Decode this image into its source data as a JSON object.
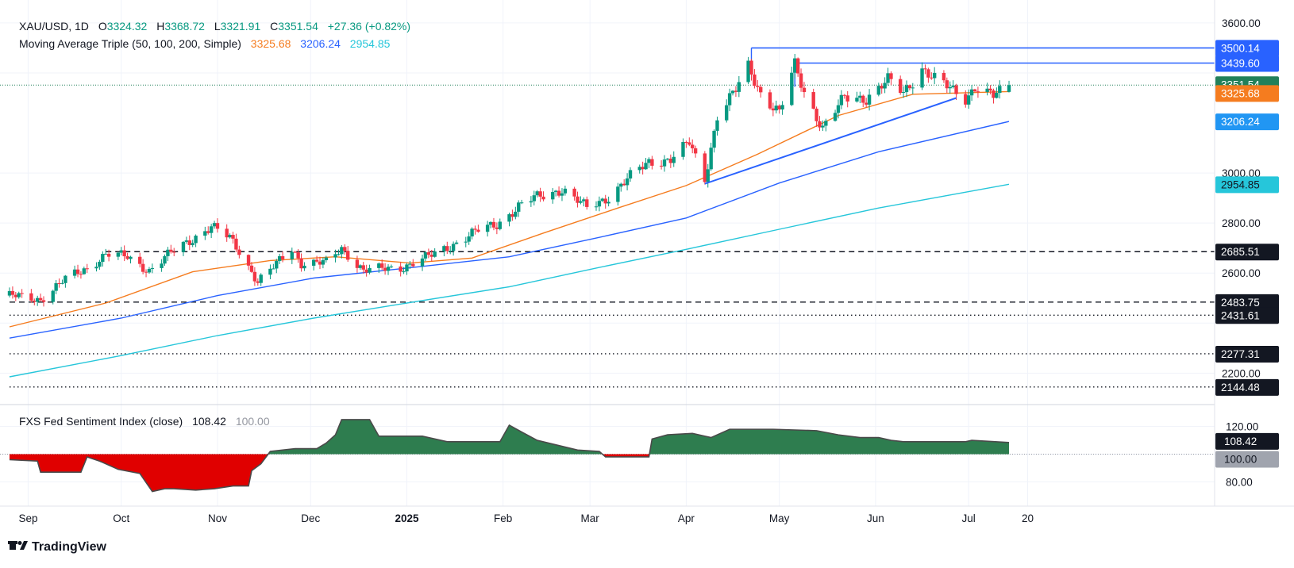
{
  "legend": {
    "symbol": "XAU/USD, 1D",
    "o_label": "O",
    "open": "3324.32",
    "h_label": "H",
    "high": "3368.72",
    "l_label": "L",
    "low": "3321.91",
    "c_label": "C",
    "close": "3351.54",
    "change": "+27.36 (+0.82%)",
    "ma_label": "Moving Average Triple (50, 100, 200, Simple)",
    "ma50": "3325.68",
    "ma100": "3206.24",
    "ma200": "2954.85",
    "sentiment_label": "FXS Fed Sentiment Index (close)",
    "sentiment_value": "108.42",
    "sentiment_base": "100.00"
  },
  "brand": "TradingView",
  "colors": {
    "up": "#089981",
    "down": "#f23645",
    "ma50": "#f57c1f",
    "ma100": "#2962ff",
    "ma200": "#26c6da",
    "trend": "#2962ff",
    "sent_up": "#2e7d4f",
    "sent_down": "#e00000",
    "price_tag": "#22805a",
    "ma50_tag": "#f57c1f",
    "ma100_tag": "#2196f3",
    "ma200_tag": "#26c6da"
  },
  "x_axis": [
    "Sep",
    "Oct",
    "Nov",
    "Dec",
    "2025",
    "Feb",
    "Mar",
    "Apr",
    "May",
    "Jun",
    "Jul",
    "20"
  ],
  "chart_data": {
    "type": "candlestick",
    "symbol": "XAU/USD",
    "timeframe": "1D",
    "date_range": [
      "2024-08-26",
      "2025-07-14"
    ],
    "y_axis_ticks": [
      3600,
      3000,
      2800,
      2600,
      2200
    ],
    "ylim": [
      2090,
      3660
    ],
    "last": {
      "open": 3324.32,
      "high": 3368.72,
      "low": 3321.91,
      "close": 3351.54,
      "change": 27.36,
      "change_pct": 0.82
    },
    "price_labels": [
      {
        "value": "3500.14",
        "kind": "resistance"
      },
      {
        "value": "3439.60",
        "kind": "resistance"
      },
      {
        "value": "3351.54",
        "kind": "price"
      },
      {
        "value": "3325.68",
        "kind": "ma50"
      },
      {
        "value": "3206.24",
        "kind": "ma100"
      },
      {
        "value": "2954.85",
        "kind": "ma200"
      },
      {
        "value": "2685.51",
        "kind": "dashed"
      },
      {
        "value": "2483.75",
        "kind": "dashed"
      },
      {
        "value": "2431.61",
        "kind": "dotted"
      },
      {
        "value": "2277.31",
        "kind": "dotted"
      },
      {
        "value": "2144.48",
        "kind": "dotted"
      }
    ],
    "horizontal_levels": [
      {
        "value": 3500.14,
        "style": "solid",
        "from": "2025-04-22",
        "to": "2025-07-31"
      },
      {
        "value": 3439.6,
        "style": "solid",
        "from": "2025-05-06",
        "to": "2025-07-31"
      },
      {
        "value": 2685.51,
        "style": "dashed",
        "from": "2024-09-26",
        "to": "2025-07-31"
      },
      {
        "value": 2483.75,
        "style": "dashed",
        "from": "2024-08-26",
        "to": "2025-07-31"
      },
      {
        "value": 2431.61,
        "style": "dotted",
        "from": "2024-08-26",
        "to": "2025-07-31"
      },
      {
        "value": 2277.31,
        "style": "dotted",
        "from": "2024-08-26",
        "to": "2025-07-31"
      },
      {
        "value": 2144.48,
        "style": "dotted",
        "from": "2024-08-26",
        "to": "2025-07-31"
      }
    ],
    "trendlines": [
      {
        "from": [
          "2025-04-07",
          2957
        ],
        "to": [
          "2025-06-27",
          3300
        ]
      }
    ],
    "price_path": [
      [
        "2024-08-26",
        2510
      ],
      [
        "2024-09-05",
        2495
      ],
      [
        "2024-09-13",
        2575
      ],
      [
        "2024-09-20",
        2620
      ],
      [
        "2024-09-26",
        2675
      ],
      [
        "2024-10-03",
        2665
      ],
      [
        "2024-10-10",
        2610
      ],
      [
        "2024-10-18",
        2690
      ],
      [
        "2024-10-23",
        2730
      ],
      [
        "2024-10-30",
        2785
      ],
      [
        "2024-11-05",
        2740
      ],
      [
        "2024-11-08",
        2690
      ],
      [
        "2024-11-14",
        2565
      ],
      [
        "2024-11-18",
        2610
      ],
      [
        "2024-11-25",
        2700
      ],
      [
        "2024-11-28",
        2640
      ],
      [
        "2024-12-06",
        2640
      ],
      [
        "2024-12-11",
        2700
      ],
      [
        "2024-12-18",
        2610
      ],
      [
        "2024-12-23",
        2615
      ],
      [
        "2024-12-31",
        2625
      ],
      [
        "2025-01-08",
        2665
      ],
      [
        "2025-01-16",
        2715
      ],
      [
        "2025-01-24",
        2770
      ],
      [
        "2025-01-30",
        2795
      ],
      [
        "2025-02-06",
        2865
      ],
      [
        "2025-02-11",
        2900
      ],
      [
        "2025-02-20",
        2935
      ],
      [
        "2025-02-28",
        2860
      ],
      [
        "2025-03-07",
        2905
      ],
      [
        "2025-03-14",
        2985
      ],
      [
        "2025-03-20",
        3045
      ],
      [
        "2025-03-27",
        3055
      ],
      [
        "2025-04-02",
        3120
      ],
      [
        "2025-04-07",
        2975
      ],
      [
        "2025-04-11",
        3230
      ],
      [
        "2025-04-17",
        3330
      ],
      [
        "2025-04-21",
        3425
      ],
      [
        "2025-04-25",
        3320
      ],
      [
        "2025-05-01",
        3240
      ],
      [
        "2025-05-06",
        3430
      ],
      [
        "2025-05-09",
        3325
      ],
      [
        "2025-05-15",
        3180
      ],
      [
        "2025-05-22",
        3300
      ],
      [
        "2025-05-29",
        3300
      ],
      [
        "2025-06-05",
        3370
      ],
      [
        "2025-06-10",
        3320
      ],
      [
        "2025-06-16",
        3420
      ],
      [
        "2025-06-20",
        3375
      ],
      [
        "2025-06-26",
        3330
      ],
      [
        "2025-06-30",
        3300
      ],
      [
        "2025-07-03",
        3345
      ],
      [
        "2025-07-09",
        3305
      ],
      [
        "2025-07-14",
        3351.54
      ]
    ],
    "series": [
      {
        "name": "MA50",
        "values": [
          [
            "2024-08-26",
            2385
          ],
          [
            "2024-09-26",
            2480
          ],
          [
            "2024-10-24",
            2605
          ],
          [
            "2024-11-18",
            2650
          ],
          [
            "2024-12-09",
            2665
          ],
          [
            "2025-01-02",
            2640
          ],
          [
            "2025-01-22",
            2660
          ],
          [
            "2025-02-14",
            2760
          ],
          [
            "2025-03-10",
            2860
          ],
          [
            "2025-04-01",
            2950
          ],
          [
            "2025-04-24",
            3075
          ],
          [
            "2025-05-20",
            3230
          ],
          [
            "2025-06-13",
            3315
          ],
          [
            "2025-07-14",
            3325.68
          ]
        ]
      },
      {
        "name": "MA100",
        "values": [
          [
            "2024-08-26",
            2340
          ],
          [
            "2024-10-01",
            2420
          ],
          [
            "2024-11-01",
            2510
          ],
          [
            "2024-12-02",
            2580
          ],
          [
            "2025-01-01",
            2620
          ],
          [
            "2025-02-03",
            2665
          ],
          [
            "2025-03-03",
            2740
          ],
          [
            "2025-04-01",
            2820
          ],
          [
            "2025-05-01",
            2960
          ],
          [
            "2025-06-02",
            3085
          ],
          [
            "2025-07-14",
            3206.24
          ]
        ]
      },
      {
        "name": "MA200",
        "values": [
          [
            "2024-08-26",
            2185
          ],
          [
            "2024-10-01",
            2270
          ],
          [
            "2024-11-01",
            2350
          ],
          [
            "2024-12-02",
            2420
          ],
          [
            "2025-01-01",
            2480
          ],
          [
            "2025-02-03",
            2545
          ],
          [
            "2025-03-03",
            2620
          ],
          [
            "2025-04-01",
            2695
          ],
          [
            "2025-05-01",
            2775
          ],
          [
            "2025-06-02",
            2860
          ],
          [
            "2025-07-14",
            2954.85
          ]
        ]
      }
    ],
    "sentiment": {
      "name": "FXS Fed Sentiment Index (close)",
      "baseline": 100,
      "ticks": [
        120,
        100,
        80
      ],
      "ylim": [
        67,
        133
      ],
      "last": 108.42,
      "values": [
        [
          "2024-08-26",
          96
        ],
        [
          "2024-09-04",
          95
        ],
        [
          "2024-09-05",
          87
        ],
        [
          "2024-09-18",
          87
        ],
        [
          "2024-09-20",
          98
        ],
        [
          "2024-09-24",
          95
        ],
        [
          "2024-09-30",
          89
        ],
        [
          "2024-10-07",
          86
        ],
        [
          "2024-10-11",
          73
        ],
        [
          "2024-10-15",
          75
        ],
        [
          "2024-10-18",
          75
        ],
        [
          "2024-10-25",
          74
        ],
        [
          "2024-10-31",
          75
        ],
        [
          "2024-11-06",
          77
        ],
        [
          "2024-11-11",
          77
        ],
        [
          "2024-11-12",
          88
        ],
        [
          "2024-11-15",
          93
        ],
        [
          "2024-11-18",
          102
        ],
        [
          "2024-11-26",
          104
        ],
        [
          "2024-12-03",
          104
        ],
        [
          "2024-12-06",
          108
        ],
        [
          "2024-12-09",
          114
        ],
        [
          "2024-12-11",
          125
        ],
        [
          "2024-12-20",
          125
        ],
        [
          "2024-12-23",
          113
        ],
        [
          "2025-01-06",
          113
        ],
        [
          "2025-01-14",
          109
        ],
        [
          "2025-01-31",
          109
        ],
        [
          "2025-02-03",
          121
        ],
        [
          "2025-02-07",
          116
        ],
        [
          "2025-02-12",
          110
        ],
        [
          "2025-02-25",
          103
        ],
        [
          "2025-03-04",
          102
        ],
        [
          "2025-03-06",
          98
        ],
        [
          "2025-03-20",
          98
        ],
        [
          "2025-03-21",
          111
        ],
        [
          "2025-03-26",
          114
        ],
        [
          "2025-04-03",
          115
        ],
        [
          "2025-04-09",
          112
        ],
        [
          "2025-04-15",
          118
        ],
        [
          "2025-04-29",
          118
        ],
        [
          "2025-05-13",
          117
        ],
        [
          "2025-05-20",
          114
        ],
        [
          "2025-05-27",
          112
        ],
        [
          "2025-06-02",
          112
        ],
        [
          "2025-06-06",
          110
        ],
        [
          "2025-06-10",
          109
        ],
        [
          "2025-06-30",
          109
        ],
        [
          "2025-07-02",
          110
        ],
        [
          "2025-07-14",
          108.42
        ]
      ]
    }
  }
}
